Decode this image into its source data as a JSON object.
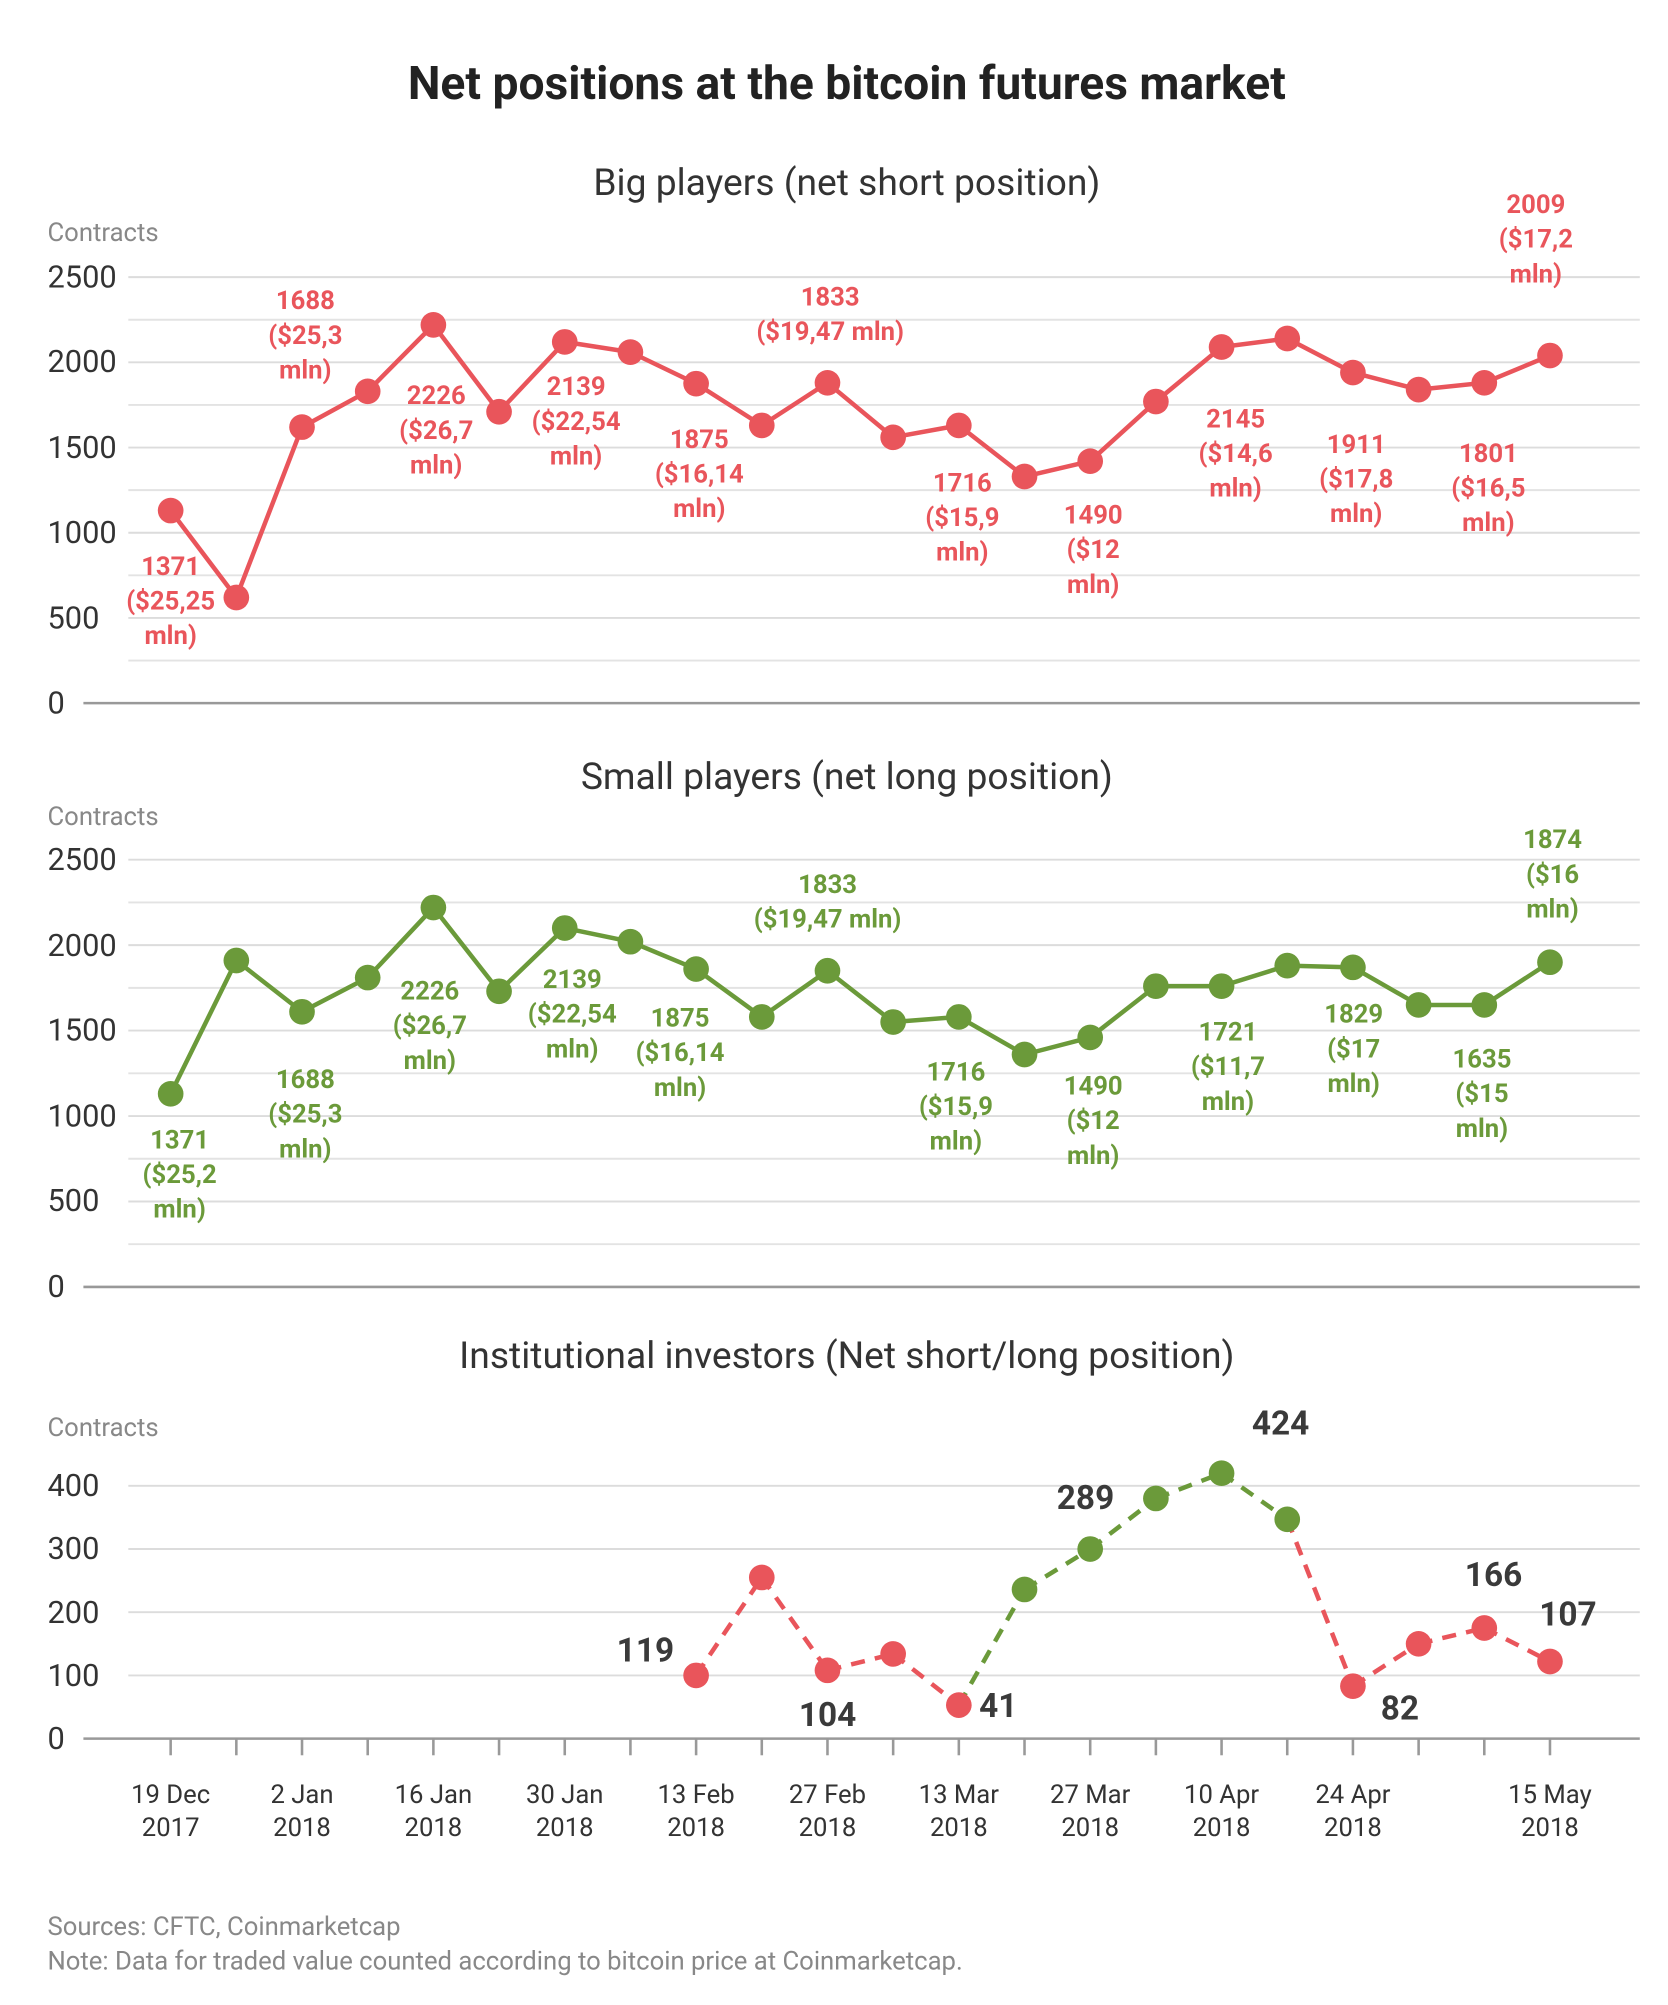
{
  "title": "Net positions at the bitcoin futures market",
  "chart_data": [
    {
      "type": "line",
      "title": "Big players (net short position)",
      "y_label": "Contracts",
      "series": [
        {
          "color": "#e9555b",
          "values": [
            1130,
            620,
            1620,
            1830,
            2220,
            1710,
            2120,
            2060,
            1875,
            1630,
            1880,
            1560,
            1630,
            1330,
            1420,
            1770,
            2090,
            2140,
            1940,
            1840,
            1880,
            2040
          ]
        }
      ],
      "annotations": [
        "1371\n($25,25\nmln)",
        "1688\n($25,3\nmln)",
        "2226\n($26,7\nmln)",
        "2139\n($22,54\nmln)",
        "1875\n($16,14\nmln)",
        "1833\n($19,47 mln)",
        "1716\n($15,9\nmln)",
        "1490\n($12\nmln)",
        "2145\n($14,6\nmln)",
        "1911\n($17,8\nmln)",
        "1801\n($16,5\nmln)",
        "2009\n($17,2\nmln)"
      ],
      "ylim": [
        0,
        2500
      ],
      "yticks": [
        0,
        500,
        1000,
        1500,
        2000,
        2500
      ],
      "minor_yticks": [
        250,
        750,
        1250,
        1750,
        2250
      ],
      "grid": true
    },
    {
      "type": "line",
      "title": "Small players (net long position)",
      "y_label": "Contracts",
      "series": [
        {
          "color": "#6b9a3a",
          "values": [
            1130,
            1910,
            1610,
            1810,
            2220,
            1730,
            2100,
            2020,
            1860,
            1580,
            1850,
            1550,
            1580,
            1360,
            1460,
            1760,
            1760,
            1880,
            1870,
            1650,
            1650,
            1900
          ]
        }
      ],
      "annotations": [
        "1371\n($25,2\nmln)",
        "1688\n($25,3\nmln)",
        "2226\n($26,7\nmln)",
        "2139\n($22,54\nmln)",
        "1875\n($16,14\nmln)",
        "1833\n($19,47 mln)",
        "1716\n($15,9\nmln)",
        "1490\n($12\nmln)",
        "1721\n($11,7\nmln)",
        "1829\n($17\nmln)",
        "1635\n($15\nmln)",
        "1874\n($16\nmln)"
      ],
      "ylim": [
        0,
        2500
      ],
      "yticks": [
        0,
        500,
        1000,
        1500,
        2000,
        2500
      ],
      "minor_yticks": [
        250,
        750,
        1250,
        1750,
        2250
      ],
      "grid": true
    },
    {
      "type": "line",
      "title": "Institutional investors (Net short/long position)",
      "y_label": "Contracts",
      "categories": [
        "19 Dec 2017",
        null,
        "2 Jan 2018",
        null,
        "16 Jan 2018",
        null,
        "30 Jan 2018",
        null,
        "13 Feb 2018",
        null,
        "27 Feb 2018",
        null,
        "13 Mar 2018",
        null,
        "27 Mar 2018",
        null,
        "10 Apr 2018",
        null,
        "24 Apr 2018",
        null,
        null,
        "15 May 2018"
      ],
      "series": [
        {
          "line_style": "dashed",
          "values": [
            null,
            null,
            null,
            null,
            null,
            null,
            null,
            null,
            100,
            255,
            108,
            134,
            53,
            236,
            300,
            380,
            420,
            347,
            83,
            150,
            175,
            122
          ],
          "colors": [
            null,
            null,
            null,
            null,
            null,
            null,
            null,
            null,
            "#e9555b",
            "#e9555b",
            "#e9555b",
            "#e9555b",
            "#e9555b",
            "#6b9a3a",
            "#6b9a3a",
            "#6b9a3a",
            "#6b9a3a",
            "#6b9a3a",
            "#e9555b",
            "#e9555b",
            "#e9555b",
            "#e9555b"
          ]
        }
      ],
      "annotations": [
        "119",
        "104",
        "41",
        "289",
        "424",
        "82",
        "166",
        "107"
      ],
      "ylim": [
        0,
        450
      ],
      "yticks": [
        0,
        100,
        200,
        300,
        400
      ],
      "grid": true
    }
  ],
  "sources": "Sources: CFTC, Coinmarketcap",
  "note": "Note: Data for traded value counted according to bitcoin price at Coinmarketcap."
}
